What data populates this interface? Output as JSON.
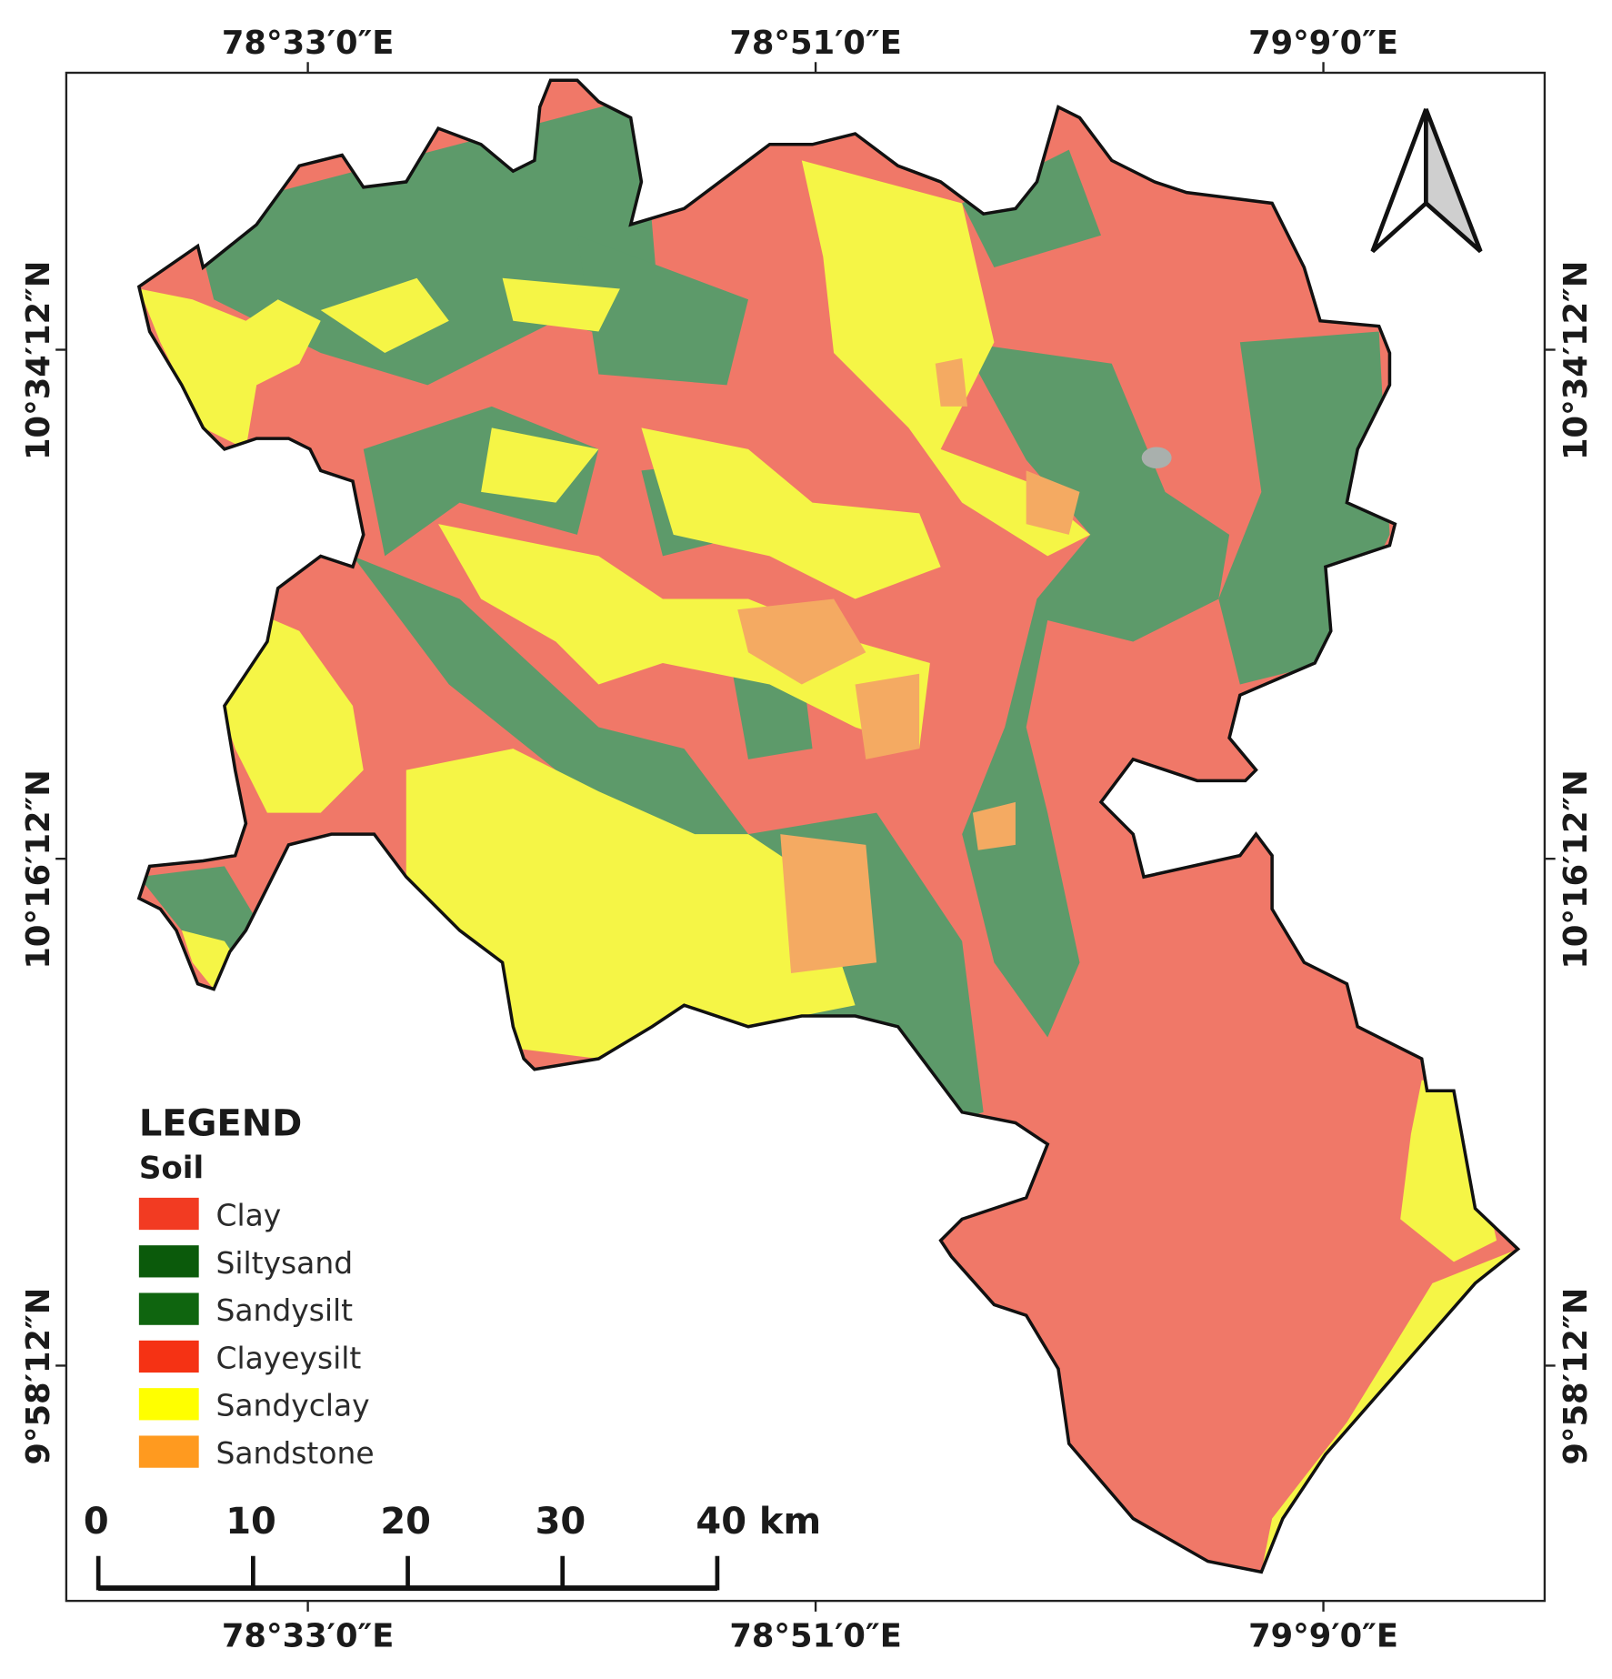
{
  "map": {
    "longitude_labels": [
      "78°33′0″E",
      "78°51′0″E",
      "79°9′0″E"
    ],
    "latitude_labels": [
      "10°34′12″N",
      "10°16′12″N",
      "9°58′12″N"
    ],
    "legend": {
      "title": "LEGEND",
      "subtitle": "Soil",
      "items": [
        {
          "label": "Clay",
          "color": "#f23b22"
        },
        {
          "label": "Siltysand",
          "color": "#0b5a0b"
        },
        {
          "label": "Sandysilt",
          "color": "#0f650f"
        },
        {
          "label": "Clayeysilt",
          "color": "#f53214"
        },
        {
          "label": "Sandyclay",
          "color": "#ffff00"
        },
        {
          "label": "Sandstone",
          "color": "#ff9a1f"
        }
      ]
    },
    "scale_bar": {
      "labels": [
        "0",
        "10",
        "20",
        "30",
        "40 km"
      ]
    }
  }
}
